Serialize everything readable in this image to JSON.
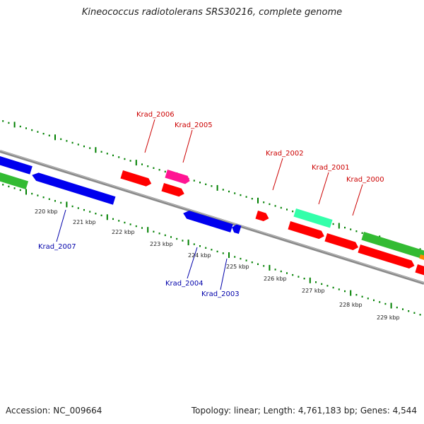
{
  "title": "Kineococcus radiotolerans SRS30216, complete genome",
  "footer": {
    "accession": "Accession: NC_009664",
    "topology": "Topology: linear; Length: 4,761,183 bp; Genes: 4,544"
  },
  "colors": {
    "forward_label": "#cc0000",
    "reverse_label": "#0000aa",
    "tick": "#008000",
    "backbone": "#808080",
    "red_gene": "#ff0000",
    "blue_gene": "#0000ee",
    "green_gene": "#33bb33",
    "magenta_gene": "#ff1493",
    "teal_gene": "#33ffaa",
    "orange_gene": "#ff8800"
  },
  "scale_labels": [
    "220 kbp",
    "221 kbp",
    "222 kbp",
    "223 kbp",
    "224 kbp",
    "225 kbp",
    "226 kbp",
    "227 kbp",
    "228 kbp",
    "229 kbp"
  ],
  "forward_gene_labels": [
    "Krad_2006",
    "Krad_2005",
    "Krad_2002",
    "Krad_2001",
    "Krad_2000"
  ],
  "reverse_gene_labels": [
    "Krad_2007",
    "Krad_2004",
    "Krad_2003"
  ]
}
